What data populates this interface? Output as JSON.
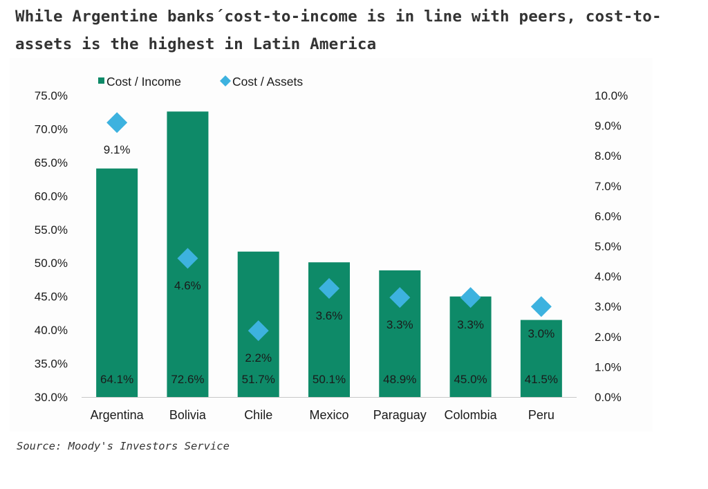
{
  "title": "While Argentine banks´cost-to-income is in line with peers, cost-to-assets is the highest in Latin America",
  "source": "Source: Moody's Investors Service",
  "colors": {
    "bar": "#0e8a68",
    "marker": "#3db2df",
    "text": "#1a1a1a"
  },
  "chart_data": {
    "type": "bar",
    "categories": [
      "Argentina",
      "Bolivia",
      "Chile",
      "Mexico",
      "Paraguay",
      "Colombia",
      "Peru"
    ],
    "series": [
      {
        "name": "Cost / Income",
        "type": "bar",
        "axis": "left",
        "values": [
          64.1,
          72.6,
          51.7,
          50.1,
          48.9,
          45.0,
          41.5
        ],
        "labels": [
          "64.1%",
          "72.6%",
          "51.7%",
          "50.1%",
          "48.9%",
          "45.0%",
          "41.5%"
        ]
      },
      {
        "name": "Cost / Assets",
        "type": "scatter",
        "marker": "diamond",
        "axis": "right",
        "values": [
          9.1,
          4.6,
          2.2,
          3.6,
          3.3,
          3.3,
          3.0
        ],
        "labels": [
          "9.1%",
          "4.6%",
          "2.2%",
          "3.6%",
          "3.3%",
          "3.3%",
          "3.0%"
        ]
      }
    ],
    "y_left": {
      "lim": [
        30,
        75
      ],
      "ticks": [
        75,
        70,
        65,
        60,
        55,
        50,
        45,
        40,
        35,
        30
      ],
      "tick_labels": [
        "75.0%",
        "70.0%",
        "65.0%",
        "60.0%",
        "55.0%",
        "50.0%",
        "45.0%",
        "40.0%",
        "35.0%",
        "30.0%"
      ]
    },
    "y_right": {
      "lim": [
        0,
        10
      ],
      "ticks": [
        10,
        9,
        8,
        7,
        6,
        5,
        4,
        3,
        2,
        1,
        0
      ],
      "tick_labels": [
        "10.0%",
        "9.0%",
        "8.0%",
        "7.0%",
        "6.0%",
        "5.0%",
        "4.0%",
        "3.0%",
        "2.0%",
        "1.0%",
        "0.0%"
      ]
    },
    "grid": false,
    "legend": "top-left"
  }
}
